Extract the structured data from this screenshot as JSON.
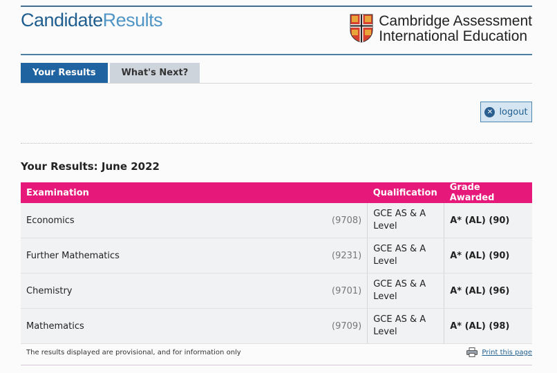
{
  "header": {
    "brand_part1": "Candidate",
    "brand_part2": "Results",
    "org_line1": "Cambridge Assessment",
    "org_line2": "International Education"
  },
  "tabs": [
    {
      "label": "Your Results",
      "active": true
    },
    {
      "label": "What's Next?",
      "active": false
    }
  ],
  "logout": {
    "label": "logout",
    "icon": "close-circle-icon"
  },
  "results": {
    "title": "Your Results: June 2022",
    "columns": [
      "Examination",
      "Qualification",
      "Grade Awarded"
    ],
    "rows": [
      {
        "exam": "Economics",
        "code": "(9708)",
        "qualification": "GCE AS & A Level",
        "grade": "A* (AL) (90)"
      },
      {
        "exam": "Further Mathematics",
        "code": "(9231)",
        "qualification": "GCE AS & A Level",
        "grade": "A* (AL) (90)"
      },
      {
        "exam": "Chemistry",
        "code": "(9701)",
        "qualification": "GCE AS & A Level",
        "grade": "A* (AL) (96)"
      },
      {
        "exam": "Mathematics",
        "code": "(9709)",
        "qualification": "GCE AS & A Level",
        "grade": "A* (AL) (98)"
      }
    ],
    "footnote": "The results displayed are provisional, and for information only",
    "print_label": "Print this page"
  },
  "colors": {
    "header_pink": "#e6197a",
    "tab_blue": "#1f63a0",
    "brand_dark": "#1f5e8f",
    "brand_light": "#4f95c6"
  }
}
